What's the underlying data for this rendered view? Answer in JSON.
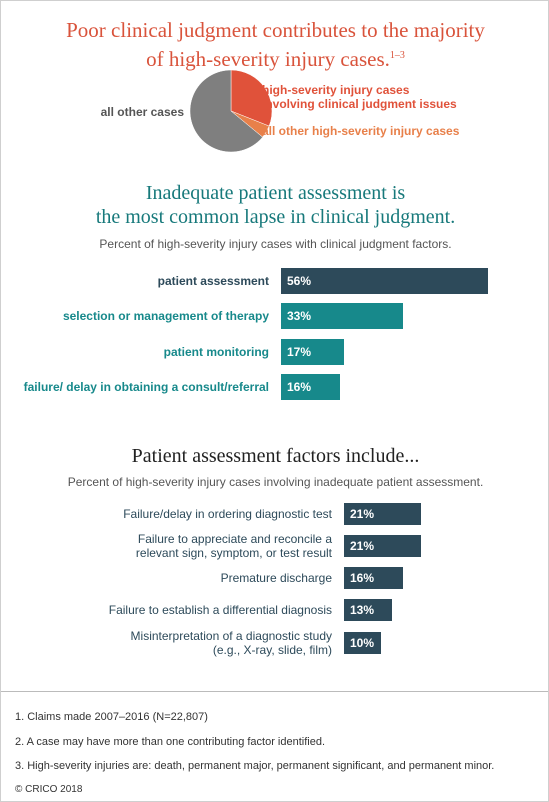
{
  "header": {
    "title": "Poor clinical judgment contributes to the majority\nof high-severity injury cases.",
    "title_note": "1–3"
  },
  "chart_data": [
    {
      "type": "pie",
      "categories": [
        "high-severity injury cases\ninvolving clinical judgment issues",
        "all other high-severity injury cases",
        "all other cases"
      ],
      "values": [
        31,
        5,
        64
      ],
      "colors": [
        "#e0523a",
        "#e8804a",
        "#7f7f7f"
      ]
    },
    {
      "type": "bar",
      "title": "Inadequate patient assessment is\nthe most common lapse in clinical judgment.",
      "subtitle": "Percent of high-severity injury cases with clinical judgment factors.",
      "categories": [
        "patient assessment",
        "selection or management of therapy",
        "patient monitoring",
        "failure/ delay in obtaining a consult/referral"
      ],
      "values": [
        56,
        33,
        17,
        16
      ],
      "value_labels": [
        "56%",
        "33%",
        "17%",
        "16%"
      ],
      "colors": [
        "#2d4a5a",
        "#17898b",
        "#17898b",
        "#17898b"
      ]
    },
    {
      "type": "bar",
      "title": "Patient assessment factors include...",
      "subtitle": "Percent of high-severity injury cases involving inadequate patient assessment.",
      "categories": [
        "Failure/delay in ordering diagnostic test",
        "Failure to appreciate and reconcile a\nrelevant sign, symptom, or test result",
        "Premature discharge",
        "Failure to establish a differential diagnosis",
        "Misinterpretation of a diagnostic study\n(e.g., X-ray, slide, film)"
      ],
      "values": [
        21,
        21,
        16,
        13,
        10
      ],
      "value_labels": [
        "21%",
        "21%",
        "16%",
        "13%",
        "10%"
      ],
      "colors": [
        "#2d4a5a",
        "#2d4a5a",
        "#2d4a5a",
        "#2d4a5a",
        "#2d4a5a"
      ]
    }
  ],
  "footnotes": [
    "1. Claims made 2007–2016 (N=22,807)",
    "2. A case may have more than one contributing factor identified.",
    "3. High-severity injuries are: death, permanent major, permanent significant, and permanent minor."
  ],
  "copyright": "© CRICO 2018"
}
